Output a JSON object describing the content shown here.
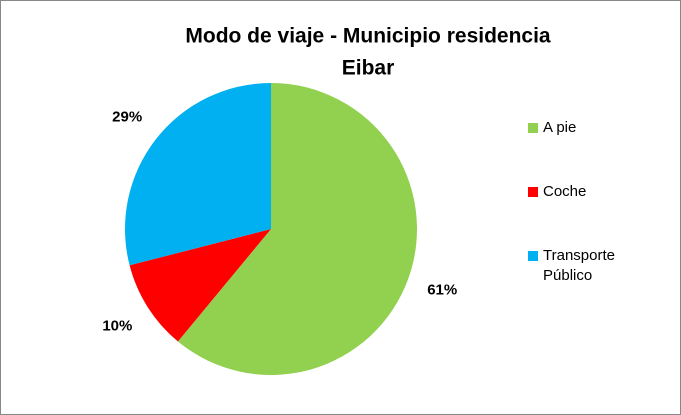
{
  "chart_data": {
    "type": "pie",
    "title": [
      "Modo de viaje - Municipio residencia",
      "Eibar"
    ],
    "categories": [
      "A pie",
      "Coche",
      "Transporte Público"
    ],
    "values": [
      61,
      10,
      29
    ],
    "value_labels": [
      "61%",
      "10%",
      "29%"
    ],
    "colors": [
      "#92d050",
      "#ff0000",
      "#00b0f0"
    ],
    "legend": "right"
  }
}
